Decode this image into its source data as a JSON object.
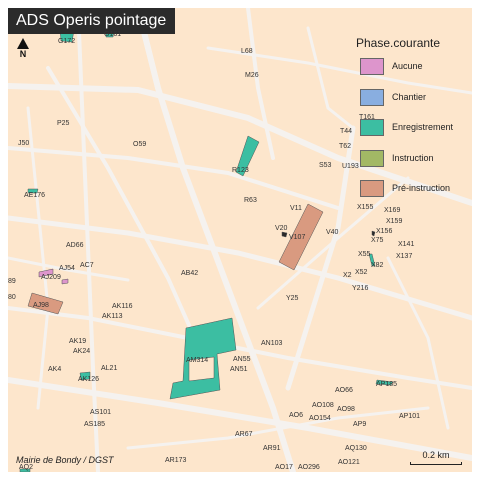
{
  "title": "ADS Operis pointage",
  "north_label": "N",
  "legend": {
    "title": "Phase.courante",
    "items": [
      {
        "label": "Aucune",
        "color": "#dd95cc"
      },
      {
        "label": "Chantier",
        "color": "#89aee0"
      },
      {
        "label": "Enregistrement",
        "color": "#3cbea2"
      },
      {
        "label": "Instruction",
        "color": "#a2b865"
      },
      {
        "label": "Pré-instruction",
        "color": "#d99a80"
      }
    ]
  },
  "parcel_labels": [
    "G172",
    "G161",
    "L68",
    "M26",
    "P25",
    "J50",
    "O59",
    "T161",
    "T44",
    "T62",
    "U193",
    "S53",
    "R123",
    "R63",
    "AE176",
    "X155",
    "X169",
    "X159",
    "X156",
    "X75",
    "X141",
    "X55",
    "X137",
    "X82",
    "X52",
    "X2",
    "Y216",
    "V11",
    "V20",
    "V107",
    "V40",
    "AD66",
    "AJ54",
    "AC7",
    "AJ209",
    "AB42",
    "89",
    "80",
    "AJ98",
    "AK116",
    "AK113",
    "Y25",
    "AN103",
    "AK19",
    "AK24",
    "AM314",
    "AN55",
    "AN51",
    "AK4",
    "AL21",
    "AK126",
    "AQ2",
    "AP185",
    "AO66",
    "AO108",
    "AO98",
    "AO6",
    "AO154",
    "AP101",
    "AS101",
    "AS185",
    "AP9",
    "AR67",
    "AR91",
    "AR173",
    "AQ130",
    "AO121",
    "AO17",
    "AO296"
  ],
  "credit": "Mairie de Bondy / DGST",
  "scale_label": "0.2 km",
  "colors": {
    "background": "#fde6cc",
    "road": "#f5f2ef"
  }
}
